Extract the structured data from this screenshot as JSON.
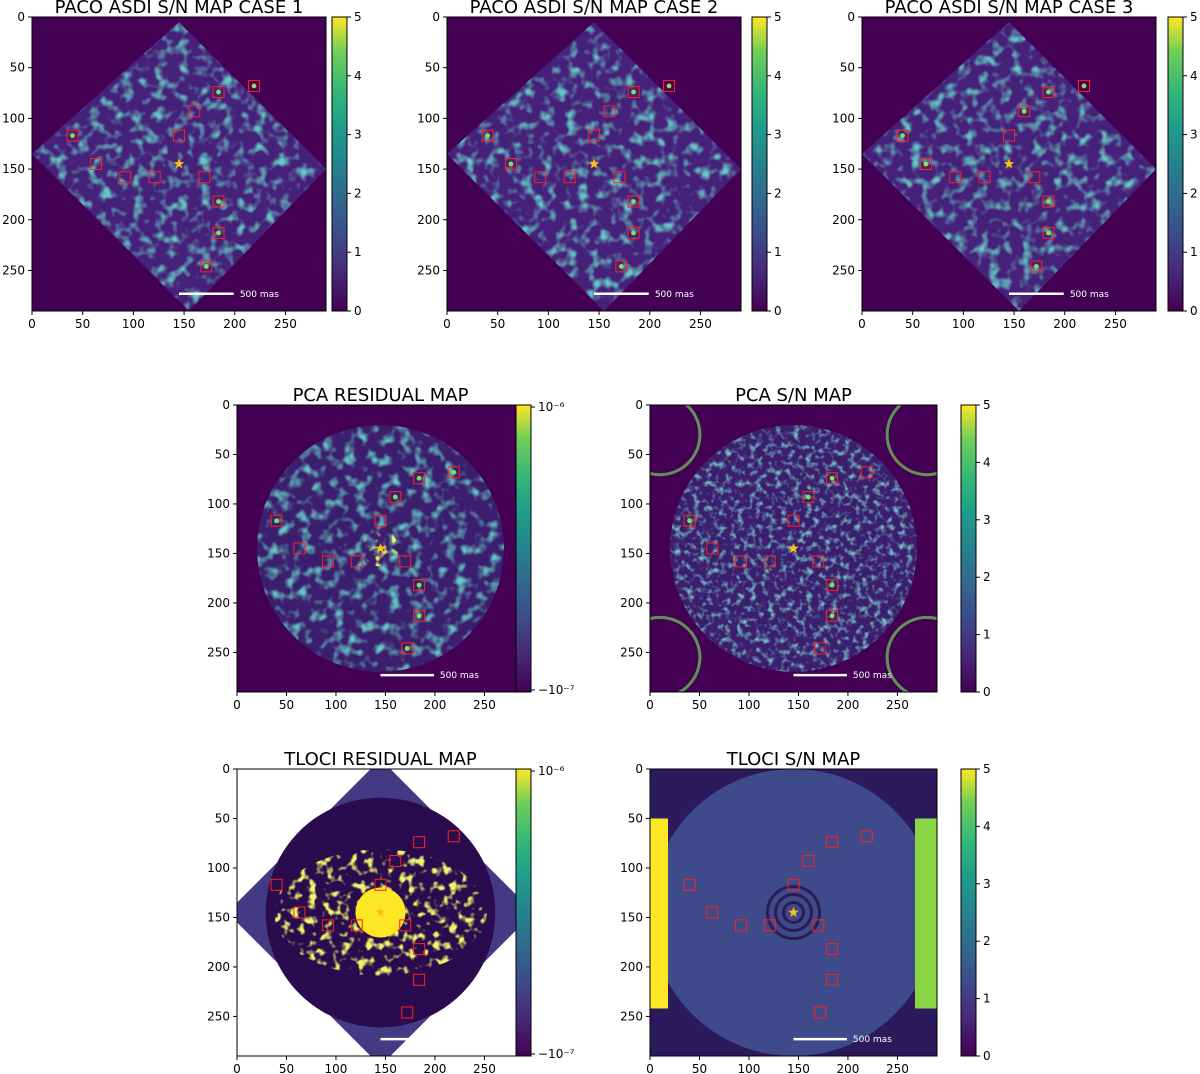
{
  "colors": {
    "viridis_low": "#440154",
    "viridis_mid": "#21918c",
    "viridis_high": "#fde725",
    "marker_box": "#ff2020",
    "star": "#ffc20e"
  },
  "scale_bar_label": "500 mas",
  "chart_data": [
    {
      "type": "heatmap",
      "title": "PACO ASDI S/N MAP CASE 1",
      "xlim": [
        0,
        290
      ],
      "ylim": [
        0,
        290
      ],
      "xticks": [
        "0",
        "50",
        "100",
        "150",
        "200",
        "250"
      ],
      "yticks": [
        "0",
        "50",
        "100",
        "150",
        "200",
        "250"
      ],
      "colorbar_ticks": [
        "0",
        "1",
        "2",
        "3",
        "4",
        "5"
      ],
      "colorbar_range": [
        0,
        5
      ],
      "star": [
        145,
        145
      ],
      "markers": [
        [
          40,
          117
        ],
        [
          63,
          145
        ],
        [
          92,
          158
        ],
        [
          121,
          158
        ],
        [
          145,
          117
        ],
        [
          170,
          158
        ],
        [
          160,
          93
        ],
        [
          184,
          74
        ],
        [
          219,
          68
        ],
        [
          184,
          182
        ],
        [
          184,
          213
        ],
        [
          172,
          246
        ]
      ],
      "bright_markers": [
        0,
        7,
        8,
        9,
        10,
        11
      ]
    },
    {
      "type": "heatmap",
      "title": "PACO ASDI S/N MAP CASE 2",
      "xlim": [
        0,
        290
      ],
      "ylim": [
        0,
        290
      ],
      "xticks": [
        "0",
        "50",
        "100",
        "150",
        "200",
        "250"
      ],
      "yticks": [
        "0",
        "50",
        "100",
        "150",
        "200",
        "250"
      ],
      "colorbar_ticks": [
        "0",
        "1",
        "2",
        "3",
        "4",
        "5"
      ],
      "colorbar_range": [
        0,
        5
      ],
      "star": [
        145,
        145
      ],
      "markers": [
        [
          40,
          117
        ],
        [
          63,
          145
        ],
        [
          92,
          158
        ],
        [
          121,
          158
        ],
        [
          145,
          117
        ],
        [
          170,
          158
        ],
        [
          160,
          93
        ],
        [
          184,
          74
        ],
        [
          219,
          68
        ],
        [
          184,
          182
        ],
        [
          184,
          213
        ],
        [
          172,
          246
        ]
      ],
      "bright_markers": [
        0,
        1,
        7,
        8,
        9,
        10,
        11
      ]
    },
    {
      "type": "heatmap",
      "title": "PACO ASDI S/N MAP CASE 3",
      "xlim": [
        0,
        290
      ],
      "ylim": [
        0,
        290
      ],
      "xticks": [
        "0",
        "50",
        "100",
        "150",
        "200",
        "250"
      ],
      "yticks": [
        "0",
        "50",
        "100",
        "150",
        "200",
        "250"
      ],
      "colorbar_ticks": [
        "0",
        "1",
        "2",
        "3",
        "4",
        "5"
      ],
      "colorbar_range": [
        0,
        5
      ],
      "star": [
        145,
        145
      ],
      "markers": [
        [
          40,
          117
        ],
        [
          63,
          145
        ],
        [
          92,
          158
        ],
        [
          121,
          158
        ],
        [
          145,
          117
        ],
        [
          170,
          158
        ],
        [
          160,
          93
        ],
        [
          184,
          74
        ],
        [
          219,
          68
        ],
        [
          184,
          182
        ],
        [
          184,
          213
        ],
        [
          172,
          246
        ]
      ],
      "bright_markers": [
        0,
        1,
        6,
        7,
        8,
        9,
        10,
        11
      ]
    },
    {
      "type": "heatmap",
      "title": "PCA RESIDUAL MAP",
      "xlim": [
        0,
        290
      ],
      "ylim": [
        0,
        290
      ],
      "xticks": [
        "0",
        "50",
        "100",
        "150",
        "200",
        "250"
      ],
      "yticks": [
        "0",
        "50",
        "100",
        "150",
        "200",
        "250"
      ],
      "colorbar_ticks": [
        "10⁻⁶",
        "−10⁻⁷"
      ],
      "star": [
        145,
        145
      ],
      "markers": [
        [
          40,
          117
        ],
        [
          63,
          145
        ],
        [
          92,
          158
        ],
        [
          121,
          158
        ],
        [
          145,
          117
        ],
        [
          170,
          158
        ],
        [
          160,
          93
        ],
        [
          184,
          74
        ],
        [
          219,
          68
        ],
        [
          184,
          182
        ],
        [
          184,
          213
        ],
        [
          172,
          246
        ]
      ],
      "bright_markers": [
        0,
        6,
        7,
        8,
        9,
        10,
        11
      ]
    },
    {
      "type": "heatmap",
      "title": "PCA S/N MAP",
      "xlim": [
        0,
        290
      ],
      "ylim": [
        0,
        290
      ],
      "xticks": [
        "0",
        "50",
        "100",
        "150",
        "200",
        "250"
      ],
      "yticks": [
        "0",
        "50",
        "100",
        "150",
        "200",
        "250"
      ],
      "colorbar_ticks": [
        "0",
        "1",
        "2",
        "3",
        "4",
        "5"
      ],
      "colorbar_range": [
        0,
        5
      ],
      "star": [
        145,
        145
      ],
      "markers": [
        [
          40,
          117
        ],
        [
          63,
          145
        ],
        [
          92,
          158
        ],
        [
          121,
          158
        ],
        [
          145,
          117
        ],
        [
          170,
          158
        ],
        [
          160,
          93
        ],
        [
          184,
          74
        ],
        [
          219,
          68
        ],
        [
          184,
          182
        ],
        [
          184,
          213
        ],
        [
          172,
          246
        ]
      ],
      "bright_markers": [
        0,
        6,
        7,
        9,
        10
      ]
    },
    {
      "type": "heatmap",
      "title": "TLOCI RESIDUAL MAP",
      "xlim": [
        0,
        290
      ],
      "ylim": [
        0,
        290
      ],
      "xticks": [
        "0",
        "50",
        "100",
        "150",
        "200",
        "250"
      ],
      "yticks": [
        "0",
        "50",
        "100",
        "150",
        "200",
        "250"
      ],
      "colorbar_ticks": [
        "10⁻⁶",
        "−10⁻⁷"
      ],
      "star": [
        145,
        145
      ],
      "markers": [
        [
          40,
          117
        ],
        [
          63,
          145
        ],
        [
          92,
          158
        ],
        [
          121,
          158
        ],
        [
          145,
          117
        ],
        [
          170,
          158
        ],
        [
          160,
          93
        ],
        [
          184,
          74
        ],
        [
          219,
          68
        ],
        [
          184,
          182
        ],
        [
          184,
          213
        ],
        [
          172,
          246
        ]
      ],
      "bright_markers": []
    },
    {
      "type": "heatmap",
      "title": "TLOCI S/N MAP",
      "xlim": [
        0,
        290
      ],
      "ylim": [
        0,
        290
      ],
      "xticks": [
        "0",
        "50",
        "100",
        "150",
        "200",
        "250"
      ],
      "yticks": [
        "0",
        "50",
        "100",
        "150",
        "200",
        "250"
      ],
      "colorbar_ticks": [
        "0",
        "1",
        "2",
        "3",
        "4",
        "5"
      ],
      "colorbar_range": [
        0,
        5
      ],
      "star": [
        145,
        145
      ],
      "markers": [
        [
          40,
          117
        ],
        [
          63,
          145
        ],
        [
          92,
          158
        ],
        [
          121,
          158
        ],
        [
          145,
          117
        ],
        [
          170,
          158
        ],
        [
          160,
          93
        ],
        [
          184,
          74
        ],
        [
          219,
          68
        ],
        [
          184,
          182
        ],
        [
          184,
          213
        ],
        [
          172,
          246
        ]
      ],
      "bright_markers": []
    }
  ]
}
